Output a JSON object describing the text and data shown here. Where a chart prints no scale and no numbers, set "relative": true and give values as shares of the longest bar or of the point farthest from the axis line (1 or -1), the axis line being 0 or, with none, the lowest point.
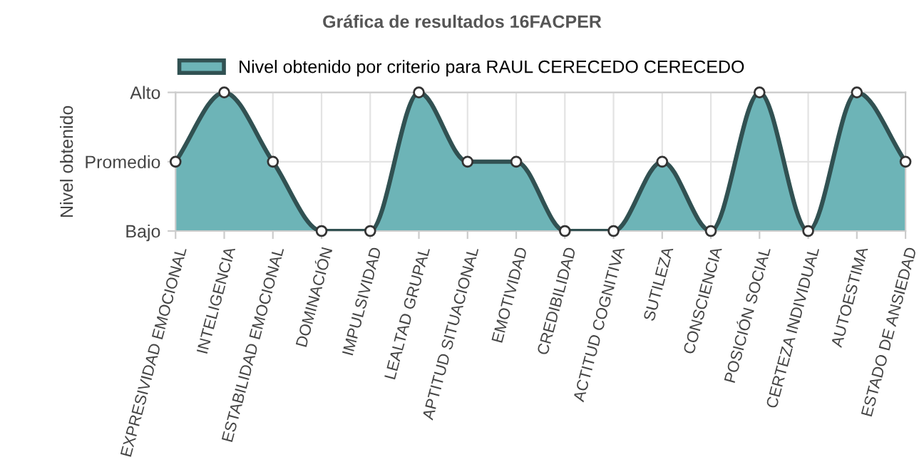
{
  "chart_data": {
    "type": "area",
    "title": "Gráfica de resultados 16FACPER",
    "ylabel": "Nivel obtenido",
    "categories": [
      "EXPRESIVIDAD EMOCIONAL",
      "INTELIGENCIA",
      "ESTABILIDAD EMOCIONAL",
      "DOMINACIÓN",
      "IMPULSIVIDAD",
      "LEALTAD GRUPAL",
      "APTITUD SITUACIONAL",
      "EMOTIVIDAD",
      "CREDIBILIDAD",
      "ACTITUD COGNITIVA",
      "SUTILEZA",
      "CONSCIENCIA",
      "POSICIÓN SOCIAL",
      "CERTEZA INDIVIDUAL",
      "AUTOESTIMA",
      "ESTADO DE ANSIEDAD"
    ],
    "series": [
      {
        "name": "Nivel obtenido por criterio para RAUL CERECEDO CERECEDO",
        "color": "#6db4b7",
        "values": [
          0.5,
          1,
          0.5,
          0,
          0,
          1,
          0.5,
          0.5,
          0,
          0,
          0.5,
          0,
          1,
          0,
          1,
          0.5
        ]
      }
    ],
    "relative": true,
    "y_categories": [
      "Alto",
      "Promedio",
      "Bajo"
    ],
    "grid": true,
    "legend": "top",
    "marker": "circle"
  }
}
